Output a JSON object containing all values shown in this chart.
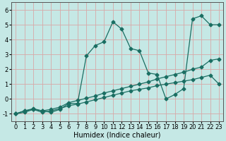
{
  "title": "",
  "xlabel": "Humidex (Indice chaleur)",
  "ylabel": "",
  "xlim": [
    -0.5,
    23.5
  ],
  "ylim": [
    -1.5,
    6.5
  ],
  "xticks": [
    0,
    1,
    2,
    3,
    4,
    5,
    6,
    7,
    8,
    9,
    10,
    11,
    12,
    13,
    14,
    15,
    16,
    17,
    18,
    19,
    20,
    21,
    22,
    23
  ],
  "yticks": [
    -1,
    0,
    1,
    2,
    3,
    4,
    5,
    6
  ],
  "background_color": "#c5e8e5",
  "grid_color": "#d8a8a8",
  "line_color": "#1a6e62",
  "line1_x": [
    0,
    1,
    2,
    3,
    4,
    5,
    6,
    7,
    8,
    9,
    10,
    11,
    12,
    13,
    14,
    15,
    16,
    17,
    18,
    19,
    20,
    21,
    22,
    23
  ],
  "line1_y": [
    -1,
    -0.8,
    -0.7,
    -0.8,
    -0.9,
    -0.7,
    -0.3,
    -0.3,
    2.9,
    3.6,
    3.85,
    5.2,
    4.7,
    3.4,
    3.25,
    1.75,
    1.65,
    0.0,
    0.3,
    0.7,
    5.4,
    5.6,
    5.0,
    5.0
  ],
  "line2_x": [
    0,
    1,
    2,
    3,
    4,
    5,
    6,
    7,
    8,
    9,
    10,
    11,
    12,
    13,
    14,
    15,
    16,
    17,
    18,
    19,
    20,
    21,
    22,
    23
  ],
  "line2_y": [
    -1,
    -0.8,
    -0.65,
    -0.8,
    -0.7,
    -0.55,
    -0.25,
    -0.1,
    0.05,
    0.2,
    0.4,
    0.55,
    0.7,
    0.85,
    1.0,
    1.15,
    1.35,
    1.5,
    1.65,
    1.8,
    2.0,
    2.15,
    2.6,
    2.7
  ],
  "line3_x": [
    0,
    1,
    2,
    3,
    4,
    5,
    6,
    7,
    8,
    9,
    10,
    11,
    12,
    13,
    14,
    15,
    16,
    17,
    18,
    19,
    20,
    21,
    22,
    23
  ],
  "line3_y": [
    -1,
    -0.9,
    -0.7,
    -0.9,
    -0.8,
    -0.65,
    -0.45,
    -0.35,
    -0.2,
    -0.05,
    0.1,
    0.25,
    0.4,
    0.55,
    0.65,
    0.75,
    0.9,
    1.0,
    1.1,
    1.2,
    1.3,
    1.45,
    1.6,
    1.0
  ],
  "xlabel_fontsize": 7,
  "tick_fontsize": 6,
  "marker": "D",
  "markersize": 2.5
}
